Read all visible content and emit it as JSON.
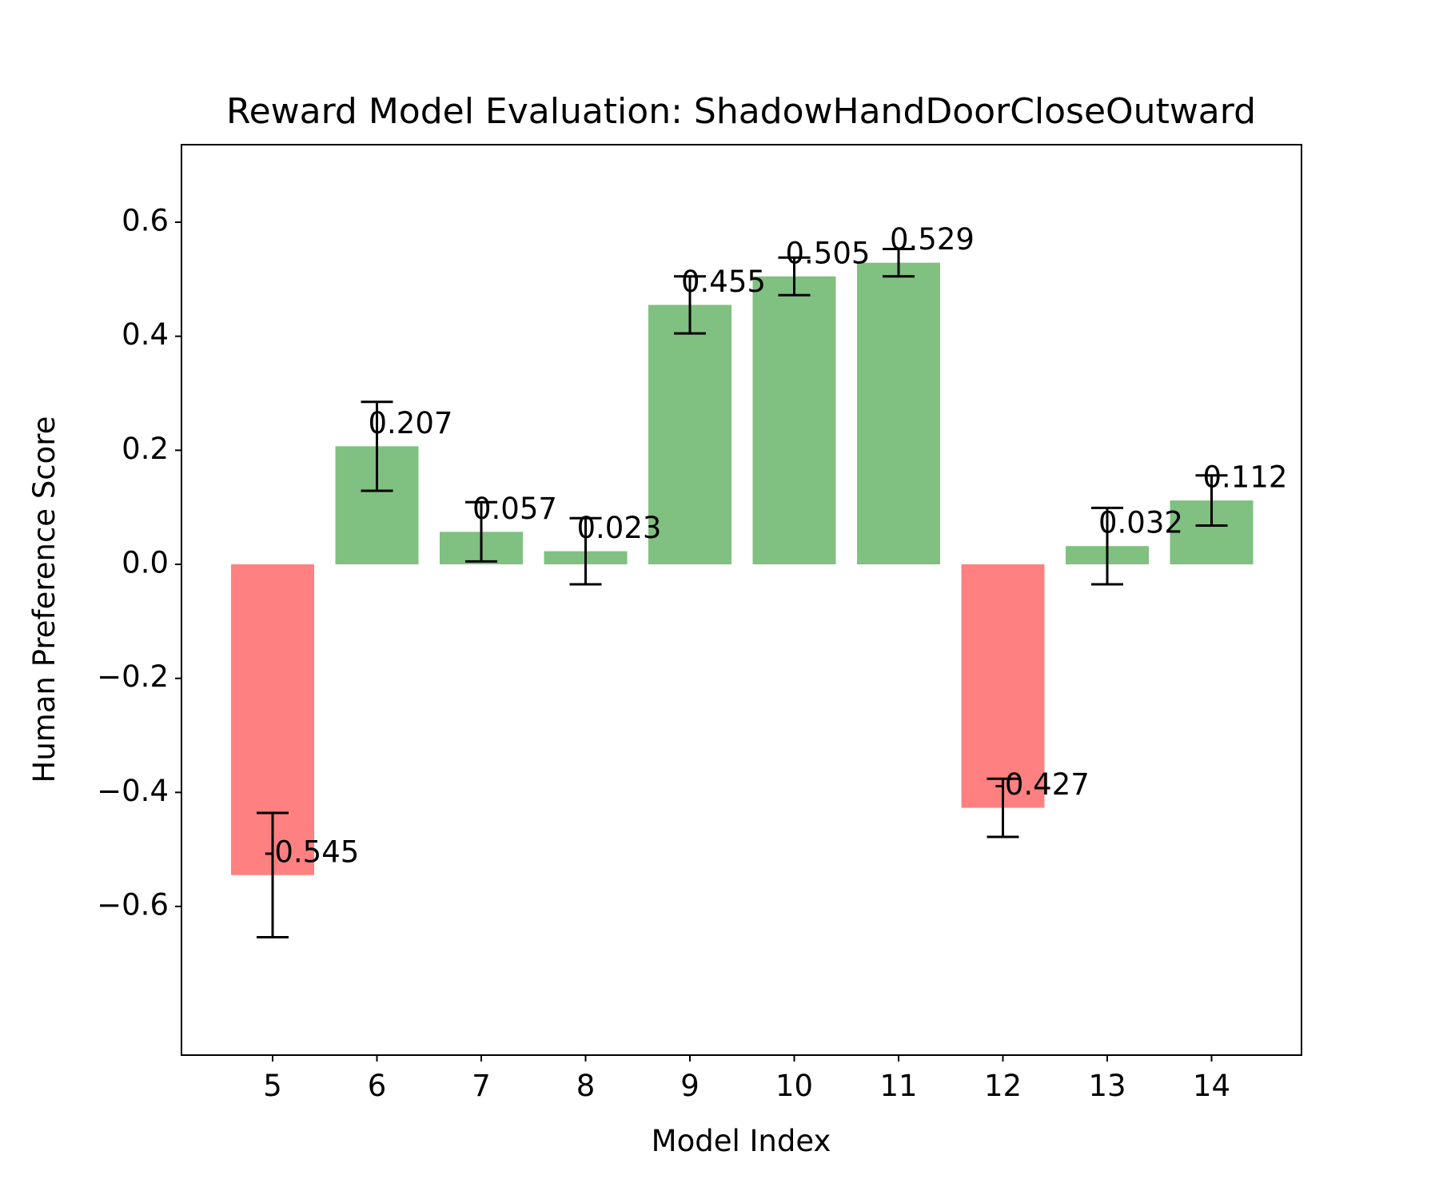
{
  "chart_data": {
    "type": "bar",
    "title": "Reward Model Evaluation: ShadowHandDoorCloseOutward",
    "xlabel": "Model Index",
    "ylabel": "Human Preference Score",
    "categories": [
      "5",
      "6",
      "7",
      "8",
      "9",
      "10",
      "11",
      "12",
      "13",
      "14"
    ],
    "values": [
      -0.545,
      0.207,
      0.057,
      0.023,
      0.455,
      0.505,
      0.529,
      -0.427,
      0.032,
      0.112
    ],
    "errors": [
      0.109,
      0.078,
      0.052,
      0.058,
      0.05,
      0.033,
      0.024,
      0.051,
      0.067,
      0.044
    ],
    "data_labels": [
      "-0.545",
      "0.207",
      "0.057",
      "0.023",
      "0.455",
      "0.505",
      "0.529",
      "-0.427",
      "0.032",
      "0.112"
    ],
    "ylim": [
      -0.715,
      0.615
    ],
    "yticks": [
      -0.6,
      -0.4,
      -0.2,
      0.0,
      0.2,
      0.4,
      0.6
    ],
    "ytick_labels": [
      "−0.6",
      "−0.4",
      "−0.2",
      "0.0",
      "0.2",
      "0.4",
      "0.6"
    ],
    "colors": {
      "positive": "#80c080",
      "negative": "#ff8080",
      "error_bar": "#000000",
      "axes": "#000000"
    },
    "grid": false,
    "legend": "none"
  }
}
